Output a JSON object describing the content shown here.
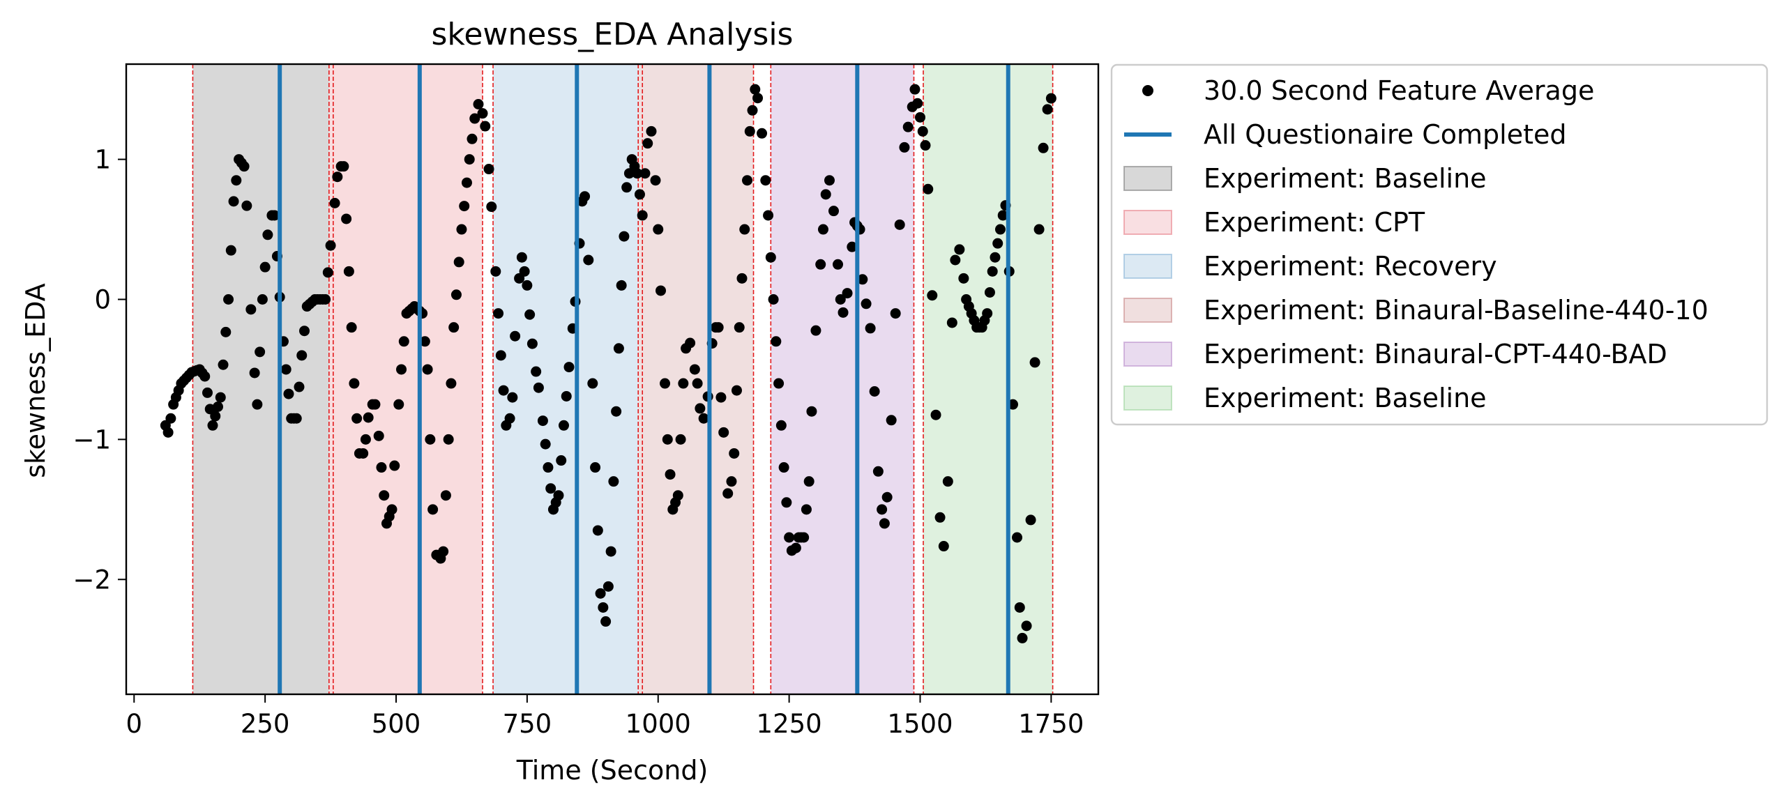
{
  "chart_data": {
    "type": "scatter",
    "title": "skewness_EDA Analysis",
    "xlabel": "Time (Second)",
    "ylabel": "skewness_EDA",
    "xlim": [
      -15,
      1840
    ],
    "ylim": [
      -2.82,
      1.68
    ],
    "x_ticks": [
      0,
      250,
      500,
      750,
      1000,
      1250,
      1500,
      1750
    ],
    "x_tick_labels": [
      "0",
      "250",
      "500",
      "750",
      "1000",
      "1250",
      "1500",
      "1750"
    ],
    "y_ticks": [
      1,
      0,
      -1,
      -2
    ],
    "y_tick_labels": [
      "1",
      "0",
      "−1",
      "−2"
    ],
    "grid": false,
    "legend_position": "outside right, top",
    "point_series": {
      "name": "30.0 Second Feature Average",
      "color": "#000000",
      "x_step": 5,
      "points": [
        [
          60,
          -0.9
        ],
        [
          65,
          -0.95
        ],
        [
          75,
          -0.75
        ],
        [
          90,
          -0.6
        ],
        [
          110,
          -0.52
        ],
        [
          125,
          -0.5
        ],
        [
          135,
          -0.55
        ],
        [
          150,
          -0.9
        ],
        [
          165,
          -0.7
        ],
        [
          180,
          0.0
        ],
        [
          190,
          0.7
        ],
        [
          200,
          1.0
        ],
        [
          210,
          0.95
        ],
        [
          218,
          0.5
        ],
        [
          225,
          -0.3
        ],
        [
          235,
          -0.75
        ],
        [
          245,
          0.0
        ],
        [
          258,
          0.6
        ],
        [
          268,
          0.6
        ],
        [
          280,
          -0.1
        ],
        [
          290,
          -0.5
        ],
        [
          300,
          -0.85
        ],
        [
          310,
          -0.85
        ],
        [
          320,
          -0.4
        ],
        [
          330,
          -0.05
        ],
        [
          345,
          0.0
        ],
        [
          365,
          0.0
        ],
        [
          378,
          0.5
        ],
        [
          390,
          0.95
        ],
        [
          400,
          0.95
        ],
        [
          410,
          0.2
        ],
        [
          420,
          -0.6
        ],
        [
          432,
          -1.2
        ],
        [
          442,
          -1.0
        ],
        [
          450,
          -0.75
        ],
        [
          462,
          -0.75
        ],
        [
          472,
          -1.2
        ],
        [
          482,
          -1.6
        ],
        [
          492,
          -1.5
        ],
        [
          500,
          -1.0
        ],
        [
          510,
          -0.5
        ],
        [
          520,
          -0.1
        ],
        [
          535,
          -0.05
        ],
        [
          550,
          -0.1
        ],
        [
          560,
          -0.5
        ],
        [
          572,
          -1.7
        ],
        [
          580,
          -1.9
        ],
        [
          590,
          -1.8
        ],
        [
          600,
          -1.0
        ],
        [
          610,
          -0.2
        ],
        [
          625,
          0.5
        ],
        [
          640,
          1.0
        ],
        [
          652,
          1.35
        ],
        [
          660,
          1.42
        ],
        [
          672,
          1.2
        ],
        [
          685,
          0.5
        ],
        [
          700,
          -0.4
        ],
        [
          712,
          -1.0
        ],
        [
          722,
          -0.7
        ],
        [
          730,
          0.0
        ],
        [
          740,
          0.3
        ],
        [
          750,
          0.1
        ],
        [
          762,
          -0.4
        ],
        [
          775,
          -0.7
        ],
        [
          790,
          -1.2
        ],
        [
          800,
          -1.5
        ],
        [
          810,
          -1.4
        ],
        [
          820,
          -0.9
        ],
        [
          832,
          -0.4
        ],
        [
          845,
          0.1
        ],
        [
          855,
          0.7
        ],
        [
          862,
          0.75
        ],
        [
          870,
          0.0
        ],
        [
          880,
          -1.2
        ],
        [
          890,
          -2.1
        ],
        [
          900,
          -2.3
        ],
        [
          910,
          -1.8
        ],
        [
          920,
          -0.8
        ],
        [
          930,
          0.1
        ],
        [
          940,
          0.8
        ],
        [
          950,
          1.0
        ],
        [
          960,
          0.9
        ],
        [
          970,
          0.6
        ],
        [
          975,
          0.9
        ],
        [
          982,
          1.2
        ],
        [
          990,
          1.2
        ],
        [
          1000,
          0.5
        ],
        [
          1008,
          -0.2
        ],
        [
          1018,
          -1.0
        ],
        [
          1028,
          -1.5
        ],
        [
          1038,
          -1.4
        ],
        [
          1048,
          -0.6
        ],
        [
          1056,
          -0.2
        ],
        [
          1065,
          -0.4
        ],
        [
          1075,
          -0.6
        ],
        [
          1082,
          -0.85
        ],
        [
          1090,
          -0.85
        ],
        [
          1098,
          -0.6
        ],
        [
          1105,
          -0.2
        ],
        [
          1115,
          -0.2
        ],
        [
          1120,
          -0.7
        ],
        [
          1128,
          -1.1
        ],
        [
          1135,
          -1.5
        ],
        [
          1145,
          -1.1
        ],
        [
          1155,
          -0.2
        ],
        [
          1165,
          0.5
        ],
        [
          1175,
          1.2
        ],
        [
          1185,
          1.5
        ],
        [
          1193,
          1.4
        ],
        [
          1200,
          1.1
        ],
        [
          1210,
          0.6
        ],
        [
          1220,
          0.0
        ],
        [
          1230,
          -0.6
        ],
        [
          1240,
          -1.2
        ],
        [
          1250,
          -1.7
        ],
        [
          1258,
          -1.85
        ],
        [
          1268,
          -1.7
        ],
        [
          1278,
          -1.7
        ],
        [
          1288,
          -1.3
        ],
        [
          1296,
          -0.5
        ],
        [
          1305,
          0.0
        ],
        [
          1315,
          0.5
        ],
        [
          1322,
          0.85
        ],
        [
          1330,
          0.85
        ],
        [
          1338,
          0.5
        ],
        [
          1348,
          0.0
        ],
        [
          1356,
          -0.15
        ],
        [
          1365,
          0.2
        ],
        [
          1375,
          0.55
        ],
        [
          1385,
          0.5
        ],
        [
          1392,
          0.0
        ],
        [
          1400,
          -0.05
        ],
        [
          1408,
          -0.3
        ],
        [
          1415,
          -0.8
        ],
        [
          1422,
          -1.4
        ],
        [
          1432,
          -1.6
        ],
        [
          1440,
          -1.3
        ],
        [
          1448,
          -0.6
        ],
        [
          1456,
          0.2
        ],
        [
          1465,
          0.8
        ],
        [
          1472,
          1.2
        ],
        [
          1480,
          1.25
        ],
        [
          1490,
          1.5
        ],
        [
          1500,
          1.3
        ],
        [
          1510,
          1.1
        ],
        [
          1518,
          0.6
        ],
        [
          1525,
          -0.2
        ],
        [
          1533,
          -1.2
        ],
        [
          1540,
          -1.7
        ],
        [
          1548,
          -1.8
        ],
        [
          1556,
          -1.0
        ],
        [
          1562,
          0.0
        ],
        [
          1570,
          0.45
        ],
        [
          1578,
          0.3
        ],
        [
          1588,
          0.0
        ],
        [
          1598,
          -0.1
        ],
        [
          1608,
          -0.2
        ],
        [
          1618,
          -0.2
        ],
        [
          1628,
          -0.1
        ],
        [
          1638,
          0.2
        ],
        [
          1648,
          0.4
        ],
        [
          1658,
          0.6
        ],
        [
          1665,
          0.7
        ],
        [
          1672,
          0.0
        ],
        [
          1680,
          -1.2
        ],
        [
          1690,
          -2.2
        ],
        [
          1698,
          -2.55
        ],
        [
          1706,
          -2.2
        ],
        [
          1714,
          -1.2
        ],
        [
          1722,
          0.0
        ],
        [
          1730,
          0.8
        ],
        [
          1738,
          1.25
        ],
        [
          1745,
          1.4
        ],
        [
          1752,
          1.45
        ]
      ]
    },
    "vertical_lines": {
      "name": "All Questionaire Completed",
      "color": "#1f77b4",
      "x": [
        278,
        545,
        845,
        1098,
        1380,
        1668
      ]
    },
    "regions": [
      {
        "name": "Experiment: Baseline",
        "start": 112,
        "end": 372,
        "fill": "#7f7f7f",
        "opacity": 0.3,
        "legend_opacity": 0.3,
        "bounds": [
          112,
          372
        ]
      },
      {
        "name": "Experiment: CPT",
        "start": 372,
        "end": 665,
        "fill": "#e8808a",
        "opacity": 0.28,
        "legend_opacity": 0.25,
        "bounds": [
          380,
          665
        ]
      },
      {
        "name": "Experiment: Recovery",
        "start": 685,
        "end": 962,
        "fill": "#8ab6d8",
        "opacity": 0.3,
        "legend_opacity": 0.3,
        "bounds": [
          685,
          962
        ]
      },
      {
        "name": "Experiment: Binaural-Baseline-440-10",
        "start": 962,
        "end": 1182,
        "fill": "#c98b8b",
        "opacity": 0.28,
        "legend_opacity": 0.28,
        "bounds": [
          970,
          1182
        ]
      },
      {
        "name": "Experiment: Binaural-CPT-440-BAD",
        "start": 1215,
        "end": 1488,
        "fill": "#bb8fcc",
        "opacity": 0.32,
        "legend_opacity": 0.32,
        "bounds": [
          1215,
          1488
        ]
      },
      {
        "name": "Experiment: Baseline",
        "start": 1506,
        "end": 1753,
        "fill": "#9fd69f",
        "opacity": 0.33,
        "legend_opacity": 0.33,
        "bounds": [
          1506,
          1753
        ]
      }
    ],
    "boundary_line_color": "#e31a1c"
  }
}
